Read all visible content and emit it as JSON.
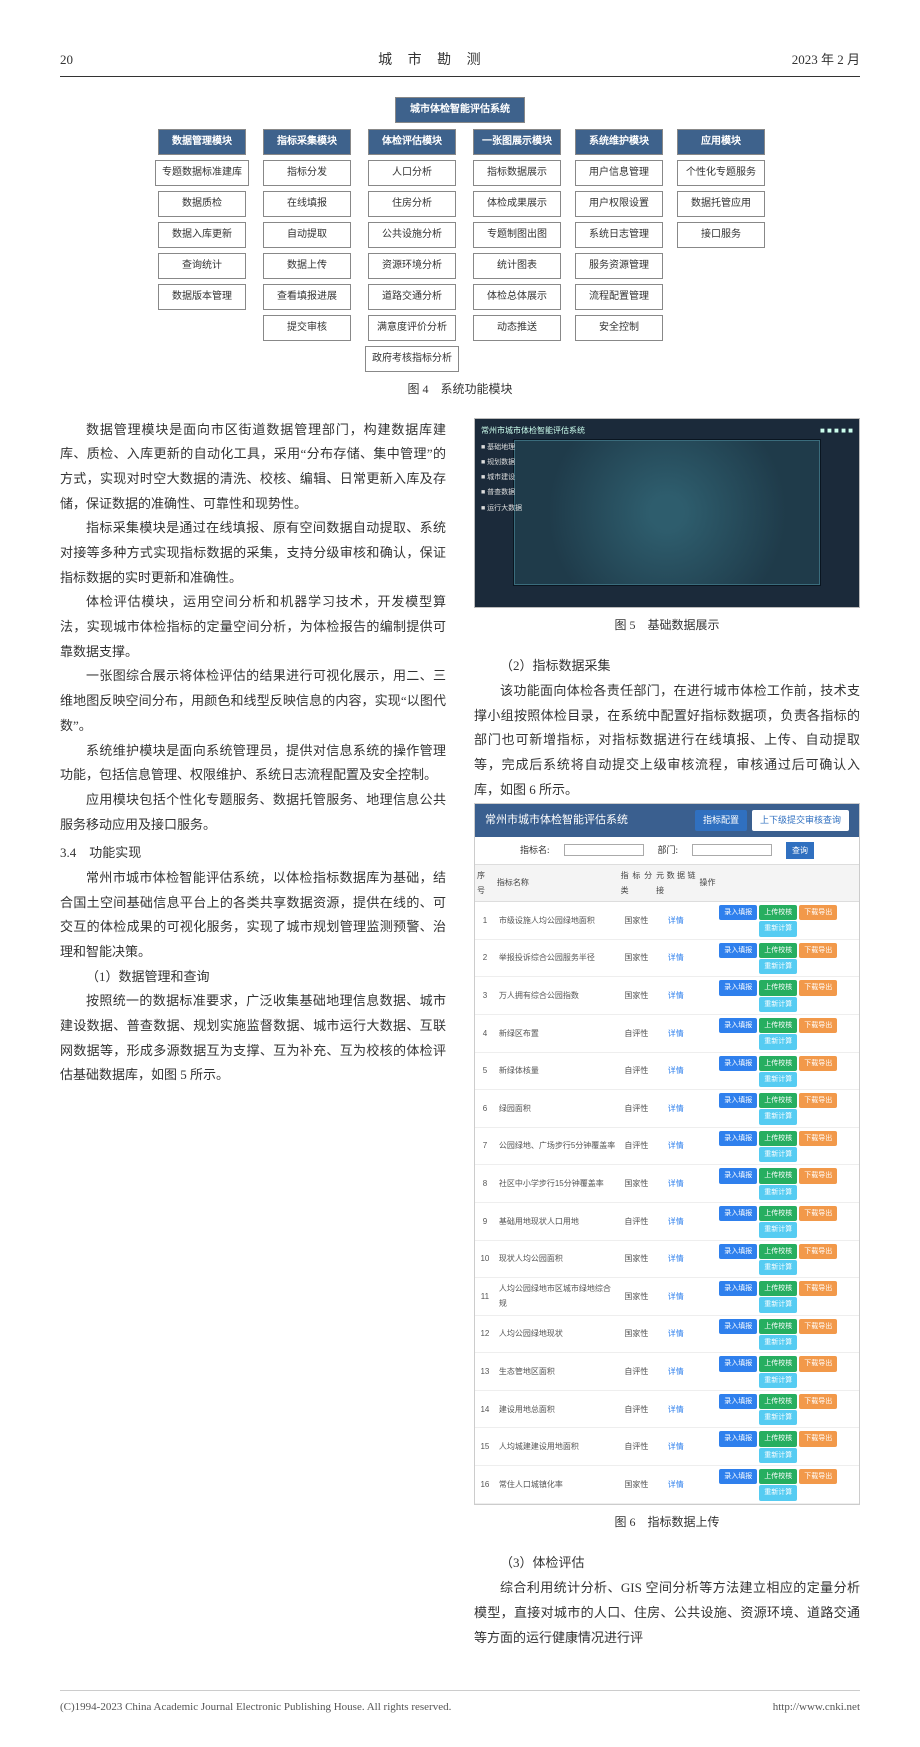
{
  "header": {
    "page_num": "20",
    "journal_title": "城 市 勘 测",
    "issue_date": "2023 年 2 月"
  },
  "figure4": {
    "caption": "图 4　系统功能模块",
    "root": "城市体检智能评估系统",
    "columns": [
      {
        "head": "数据管理模块",
        "leaves": [
          "专题数据标准建库",
          "数据质检",
          "数据入库更新",
          "查询统计",
          "数据版本管理"
        ]
      },
      {
        "head": "指标采集模块",
        "leaves": [
          "指标分发",
          "在线填报",
          "自动提取",
          "数据上传",
          "查看填报进展",
          "提交审核"
        ]
      },
      {
        "head": "体检评估模块",
        "leaves": [
          "人口分析",
          "住房分析",
          "公共设施分析",
          "资源环境分析",
          "道路交通分析",
          "满意度评价分析",
          "政府考核指标分析"
        ]
      },
      {
        "head": "一张图展示模块",
        "leaves": [
          "指标数据展示",
          "体检成果展示",
          "专题制图出图",
          "统计图表",
          "体检总体展示",
          "动态推送"
        ]
      },
      {
        "head": "系统维护模块",
        "leaves": [
          "用户信息管理",
          "用户权限设置",
          "系统日志管理",
          "服务资源管理",
          "流程配置管理",
          "安全控制"
        ]
      },
      {
        "head": "应用模块",
        "leaves": [
          "个性化专题服务",
          "数据托管应用",
          "接口服务"
        ]
      }
    ],
    "colors": {
      "head_bg": "#3e628c",
      "head_fg": "#ffffff",
      "leaf_bg": "#ffffff",
      "border": "#888888"
    }
  },
  "left_col_paras": [
    "数据管理模块是面向市区街道数据管理部门，构建数据库建库、质检、入库更新的自动化工具，采用“分布存储、集中管理”的方式，实现对时空大数据的清洗、校核、编辑、日常更新入库及存储，保证数据的准确性、可靠性和现势性。",
    "指标采集模块是通过在线填报、原有空间数据自动提取、系统对接等多种方式实现指标数据的采集，支持分级审核和确认，保证指标数据的实时更新和准确性。",
    "体检评估模块，运用空间分析和机器学习技术，开发模型算法，实现城市体检指标的定量空间分析，为体检报告的编制提供可靠数据支撑。",
    "一张图综合展示将体检评估的结果进行可视化展示，用二、三维地图反映空间分布，用颜色和线型反映信息的内容，实现“以图代数”。",
    "系统维护模块是面向系统管理员，提供对信息系统的操作管理功能，包括信息管理、权限维护、系统日志流程配置及安全控制。",
    "应用模块包括个性化专题服务、数据托管服务、地理信息公共服务移动应用及接口服务。"
  ],
  "section34_title": "3.4　功能实现",
  "section34_paras": [
    "常州市城市体检智能评估系统，以体检指标数据库为基础，结合国土空间基础信息平台上的各类共享数据资源，提供在线的、可交互的体检成果的可视化服务，实现了城市规划管理监测预警、治理和智能决策。",
    "（1）数据管理和查询",
    "按照统一的数据标准要求，广泛收集基础地理信息数据、城市建设数据、普查数据、规划实施监督数据、城市运行大数据、互联网数据等，形成多源数据互为支撑、互为补充、互为校核的体检评估基础数据库，如图 5 所示。"
  ],
  "figure5": {
    "caption": "图 5　基础数据展示",
    "app_title": "常州市城市体检智能评估系统"
  },
  "right_paras_1": [
    "（2）指标数据采集",
    "该功能面向体检各责任部门，在进行城市体检工作前，技术支撑小组按照体检目录，在系统中配置好指标数据项，负责各指标的部门也可新增指标，对指标数据进行在线填报、上传、自动提取等，完成后系统将自动提交上级审核流程，审核通过后可确认入库，如图 6 所示。"
  ],
  "figure6": {
    "caption": "图 6　指标数据上传",
    "app_title": "常州市城市体检智能评估系统",
    "tabs": [
      "指标配置",
      "上下级提交审核查询"
    ],
    "search_label1": "指标名:",
    "search_label2": "部门:",
    "search_btn": "查询",
    "columns": [
      "序号",
      "指标名称",
      "指标分类",
      "元数据链接",
      "操作"
    ],
    "rows": [
      {
        "n": "1",
        "name": "市级设施人均公园绿地面积",
        "type": "国家性",
        "link": "详情"
      },
      {
        "n": "2",
        "name": "举报投诉综合公园服务半径",
        "type": "国家性",
        "link": "详情"
      },
      {
        "n": "3",
        "name": "万人拥有综合公园指数",
        "type": "国家性",
        "link": "详情"
      },
      {
        "n": "4",
        "name": "新绿区布置",
        "type": "自评性",
        "link": "详情"
      },
      {
        "n": "5",
        "name": "新绿体核量",
        "type": "自评性",
        "link": "详情"
      },
      {
        "n": "6",
        "name": "绿园面积",
        "type": "自评性",
        "link": "详情"
      },
      {
        "n": "7",
        "name": "公园绿地、广场步行5分钟覆盖率",
        "type": "自评性",
        "link": "详情"
      },
      {
        "n": "8",
        "name": "社区中小学步行15分钟覆盖率",
        "type": "国家性",
        "link": "详情"
      },
      {
        "n": "9",
        "name": "基础用地现状人口用地",
        "type": "自评性",
        "link": "详情"
      },
      {
        "n": "10",
        "name": "现状人均公园面积",
        "type": "国家性",
        "link": "详情"
      },
      {
        "n": "11",
        "name": "人均公园绿地市区城市绿地综合规",
        "type": "国家性",
        "link": "详情"
      },
      {
        "n": "12",
        "name": "人均公园绿地现状",
        "type": "国家性",
        "link": "详情"
      },
      {
        "n": "13",
        "name": "生态管地区面积",
        "type": "自评性",
        "link": "详情"
      },
      {
        "n": "14",
        "name": "建设用地总面积",
        "type": "自评性",
        "link": "详情"
      },
      {
        "n": "15",
        "name": "人均城建建设用地面积",
        "type": "自评性",
        "link": "详情"
      },
      {
        "n": "16",
        "name": "常住人口城镇化率",
        "type": "国家性",
        "link": "详情"
      }
    ],
    "op_pills": [
      "录入填报",
      "上传校核",
      "下载导出",
      "重新计算"
    ],
    "pill_colors": [
      "#2f80ed",
      "#27ae60",
      "#f2994a",
      "#56ccf2"
    ]
  },
  "right_paras_2": [
    "（3）体检评估",
    "综合利用统计分析、GIS 空间分析等方法建立相应的定量分析模型，直接对城市的人口、住房、公共设施、资源环境、道路交通等方面的运行健康情况进行评"
  ],
  "footer": {
    "left": "(C)1994-2023 China Academic Journal Electronic Publishing House. All rights reserved.",
    "right": "http://www.cnki.net"
  }
}
